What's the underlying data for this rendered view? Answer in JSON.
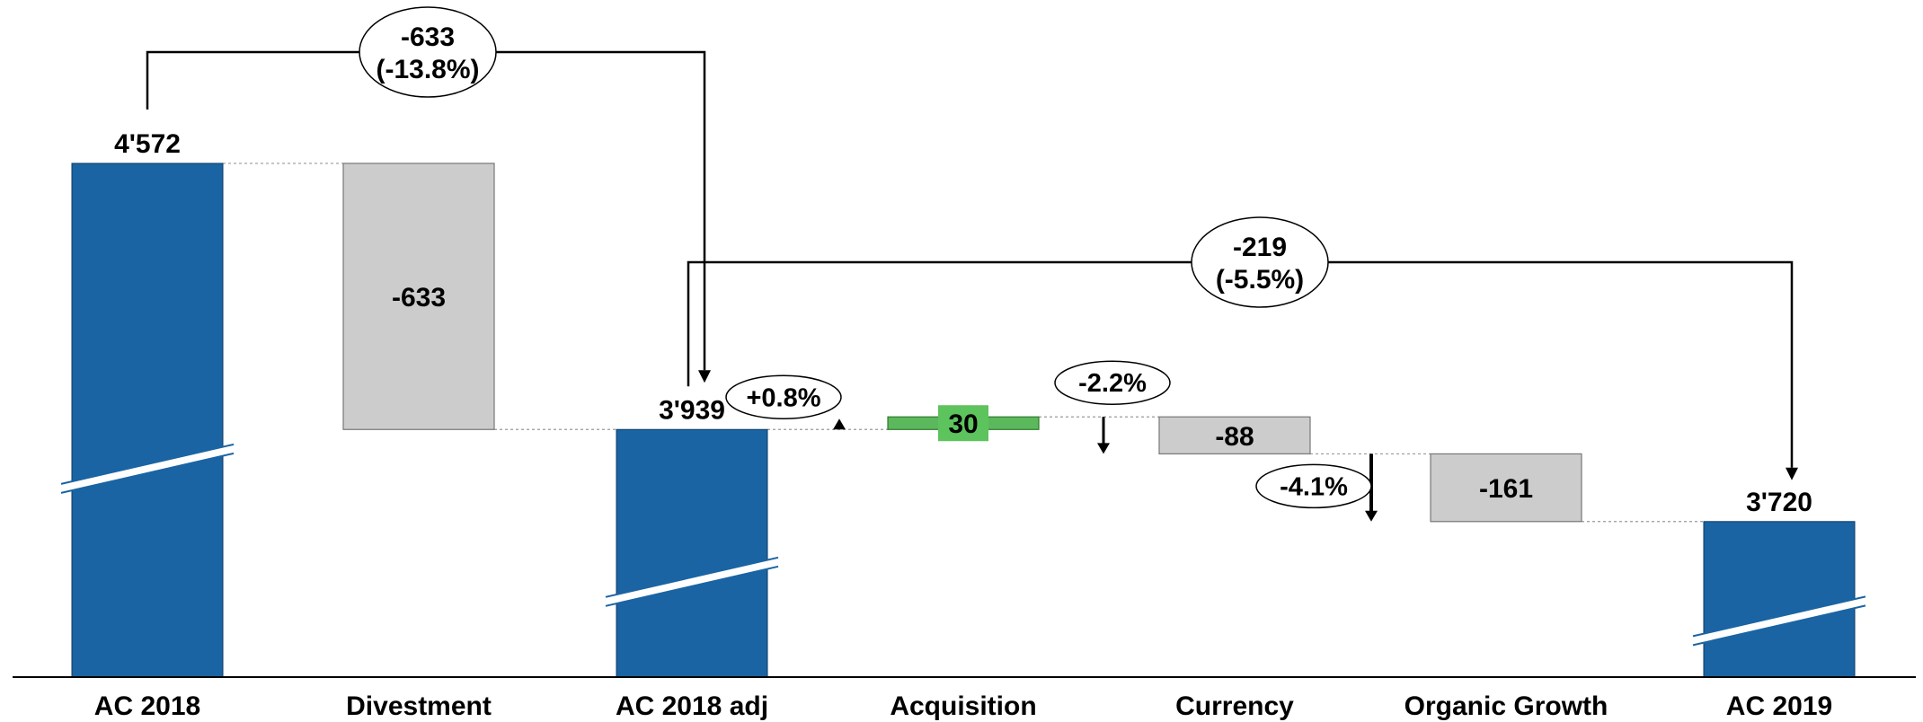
{
  "chart_data": {
    "type": "bar",
    "variant": "waterfall",
    "categories": [
      "AC 2018",
      "Divestment",
      "AC 2018 adj",
      "Acquisition",
      "Currency",
      "Organic Growth",
      "AC 2019"
    ],
    "values": [
      4572,
      -633,
      3939,
      30,
      -88,
      -161,
      3720
    ],
    "kinds": [
      "total",
      "delta",
      "total",
      "delta",
      "delta",
      "delta",
      "total"
    ],
    "value_labels": [
      "4'572",
      "-633",
      "3'939",
      "30",
      "-88",
      "-161",
      "3'720"
    ],
    "delta_percent_labels": [
      "",
      "",
      "",
      "+0.8%",
      "-2.2%",
      "-4.1%",
      ""
    ],
    "axis_break": true,
    "bracket_labels": [
      {
        "from": "AC 2018",
        "to": "AC 2018 adj",
        "lines": [
          "-633",
          "(-13.8%)"
        ]
      },
      {
        "from": "AC 2018 adj",
        "to": "AC 2019",
        "lines": [
          "-219",
          "(-5.5%)"
        ]
      }
    ],
    "colors": {
      "total": "#1A64A3",
      "negative": "#CCCCCC",
      "positive": "#5CB85C",
      "positive_label_bg": "#5DC35D"
    },
    "ylim": [
      3350,
      4700
    ],
    "title": "",
    "xlabel": "",
    "ylabel": ""
  }
}
